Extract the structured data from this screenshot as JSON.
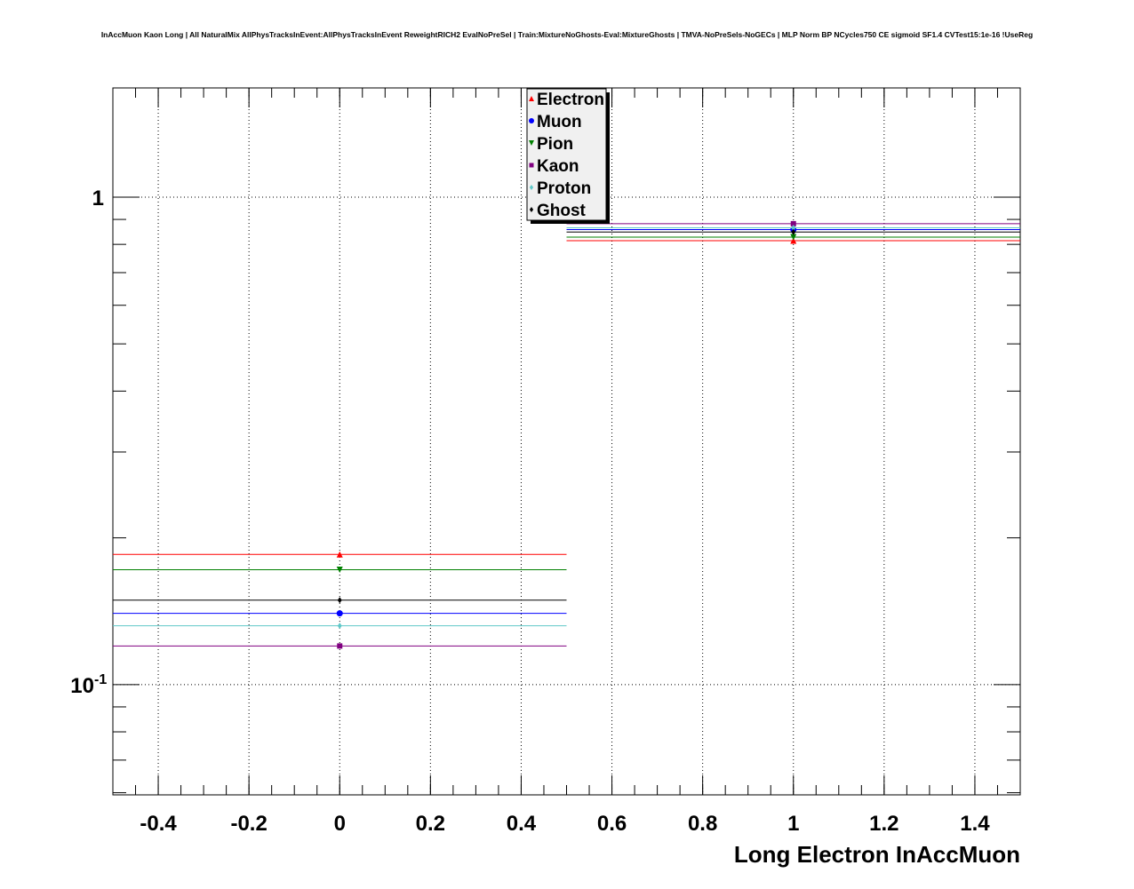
{
  "chart_data": {
    "type": "scatter",
    "title": "InAccMuon Kaon Long | All NaturalMix AllPhysTracksInEvent:AllPhysTracksInEvent ReweightRICH2 EvalNoPreSel | Train:MixtureNoGhosts-Eval:MixtureGhosts | TMVA-NoPreSels-NoGECs | MLP Norm BP NCycles750 CE sigmoid SF1.4 CVTest15:1e-16 !UseReg",
    "xlabel": "Long Electron InAccMuon",
    "ylabel": "",
    "xlim": [
      -0.5,
      1.5
    ],
    "ylim": [
      0.0594,
      1.675
    ],
    "yscale": "log",
    "grid": true,
    "legend_position": "top-center",
    "xticks": [
      "-0.4",
      "-0.2",
      "0",
      "0.2",
      "0.4",
      "0.6",
      "0.8",
      "1",
      "1.2",
      "1.4"
    ],
    "yticks": [
      {
        "value": 1,
        "label": "1",
        "sup": ""
      },
      {
        "value": 0.1,
        "label": "10",
        "sup": "-1"
      }
    ],
    "x": [
      0,
      1
    ],
    "series": [
      {
        "name": "Electron",
        "color": "#ff0000",
        "marker": "triangle-up",
        "values": [
          0.185,
          0.814
        ]
      },
      {
        "name": "Muon",
        "color": "#0000ff",
        "marker": "circle",
        "values": [
          0.14,
          0.858
        ]
      },
      {
        "name": "Pion",
        "color": "#008000",
        "marker": "triangle-down",
        "values": [
          0.172,
          0.828
        ]
      },
      {
        "name": "Kaon",
        "color": "#800080",
        "marker": "square",
        "values": [
          0.12,
          0.882
        ]
      },
      {
        "name": "Proton",
        "color": "#5fc8c8",
        "marker": "diamond",
        "values": [
          0.132,
          0.865
        ]
      },
      {
        "name": "Ghost",
        "color": "#000000",
        "marker": "diamond",
        "values": [
          0.149,
          0.848
        ]
      }
    ]
  }
}
